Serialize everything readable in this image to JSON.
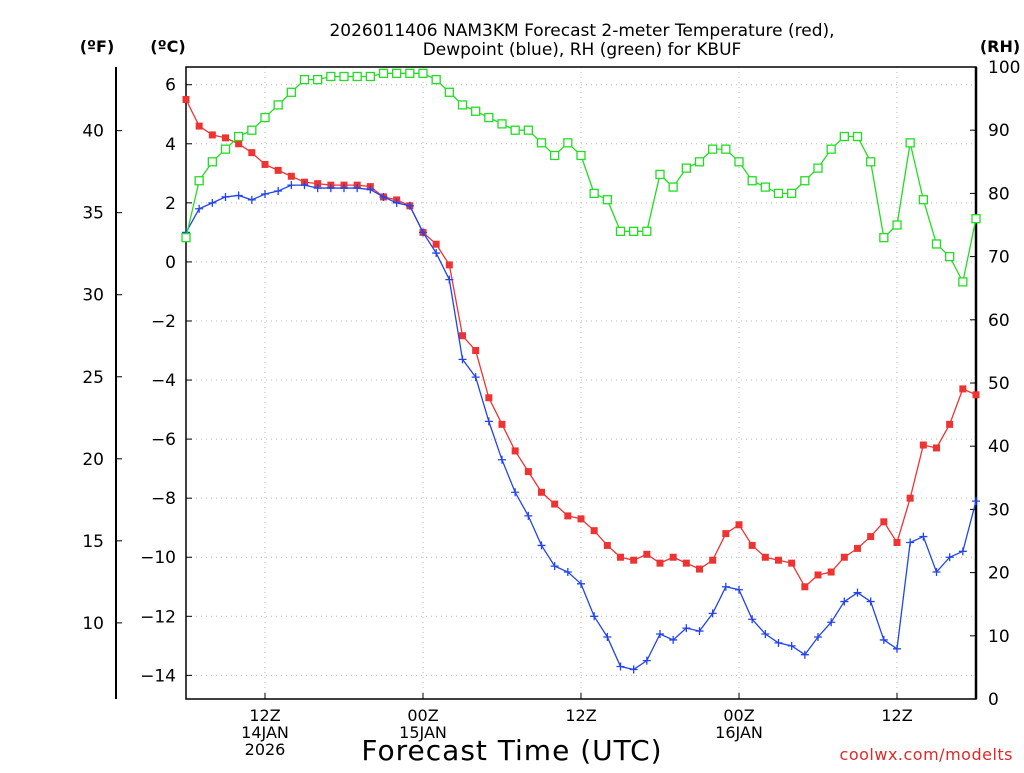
{
  "chart_data": {
    "type": "line",
    "title_lines": [
      "2026011406 NAM3KM Forecast 2-meter Temperature (red),",
      "Dewpoint (blue), RH (green) for KBUF"
    ],
    "units": {
      "fahrenheit": "(ºF)",
      "celsius": "(ºC)",
      "rh": "(RH)"
    },
    "xlabel": "Forecast Time (UTC)",
    "credit": "coolwx.com/modelts",
    "x_hours_range": [
      0,
      60
    ],
    "y_celsius_range": [
      -14.8,
      6.6
    ],
    "y_rh_range": [
      0,
      100
    ],
    "y_celsius_ticks": [
      6,
      4,
      2,
      0,
      -2,
      -4,
      -6,
      -8,
      -10,
      -12,
      -14
    ],
    "y_celsius_tick_labels": [
      "6",
      "4",
      "2",
      "0",
      "−2",
      "−4",
      "−6",
      "−8",
      "−10",
      "−12",
      "−14"
    ],
    "y_fahrenheit_ticks": [
      40,
      35,
      30,
      25,
      20,
      15,
      10
    ],
    "y_fahrenheit_tick_labels": [
      "40",
      "35",
      "30",
      "25",
      "20",
      "15",
      "10"
    ],
    "y_rh_ticks": [
      100,
      90,
      80,
      70,
      60,
      50,
      40,
      30,
      20,
      10,
      0
    ],
    "y_rh_tick_labels": [
      "100",
      "90",
      "80",
      "70",
      "60",
      "50",
      "40",
      "30",
      "20",
      "10",
      "0"
    ],
    "x_ticks": [
      {
        "hour": 6,
        "lines": [
          "12Z",
          "14JAN",
          "2026"
        ]
      },
      {
        "hour": 18,
        "lines": [
          "00Z",
          "15JAN"
        ]
      },
      {
        "hour": 30,
        "lines": [
          "12Z"
        ]
      },
      {
        "hour": 42,
        "lines": [
          "00Z",
          "16JAN"
        ]
      },
      {
        "hour": 54,
        "lines": [
          "12Z"
        ]
      }
    ],
    "grid": true,
    "x_hours": [
      0,
      1,
      2,
      3,
      4,
      5,
      6,
      7,
      8,
      9,
      10,
      11,
      12,
      13,
      14,
      15,
      16,
      17,
      18,
      19,
      20,
      21,
      22,
      23,
      24,
      25,
      26,
      27,
      28,
      29,
      30,
      31,
      32,
      33,
      34,
      35,
      36,
      37,
      38,
      39,
      40,
      41,
      42,
      43,
      44,
      45,
      46,
      47,
      48,
      49,
      50,
      51,
      52,
      53,
      54,
      55,
      56,
      57,
      58,
      59,
      60
    ],
    "series": [
      {
        "name": "2-meter Temperature",
        "unit": "C",
        "color": "#ee3333",
        "marker": "filled-square",
        "values": [
          5.5,
          4.6,
          4.3,
          4.2,
          4.0,
          3.7,
          3.3,
          3.1,
          2.9,
          2.7,
          2.65,
          2.6,
          2.6,
          2.6,
          2.55,
          2.2,
          2.1,
          1.9,
          1.0,
          0.6,
          -0.1,
          -2.5,
          -3.0,
          -4.6,
          -5.5,
          -6.4,
          -7.1,
          -7.8,
          -8.2,
          -8.6,
          -8.7,
          -9.1,
          -9.6,
          -10.0,
          -10.1,
          -9.9,
          -10.2,
          -10.0,
          -10.2,
          -10.4,
          -10.1,
          -9.2,
          -8.9,
          -9.6,
          -10.0,
          -10.1,
          -10.2,
          -11.0,
          -10.6,
          -10.5,
          -10.0,
          -9.7,
          -9.3,
          -8.8,
          -9.5,
          -8.0,
          -6.2,
          -6.3,
          -5.5,
          -4.3,
          -4.5
        ]
      },
      {
        "name": "Dewpoint",
        "unit": "C",
        "color": "#2244ee",
        "marker": "plus",
        "values": [
          1.0,
          1.8,
          2.0,
          2.2,
          2.25,
          2.1,
          2.3,
          2.4,
          2.6,
          2.6,
          2.5,
          2.5,
          2.5,
          2.5,
          2.45,
          2.2,
          2.0,
          1.9,
          1.0,
          0.3,
          -0.6,
          -3.3,
          -3.9,
          -5.4,
          -6.7,
          -7.8,
          -8.6,
          -9.6,
          -10.3,
          -10.5,
          -10.9,
          -12.0,
          -12.7,
          -13.7,
          -13.8,
          -13.5,
          -12.6,
          -12.8,
          -12.4,
          -12.5,
          -11.9,
          -11.0,
          -11.1,
          -12.1,
          -12.6,
          -12.9,
          -13.0,
          -13.3,
          -12.7,
          -12.2,
          -11.5,
          -11.2,
          -11.5,
          -12.8,
          -13.1,
          -9.5,
          -9.3,
          -10.5,
          -10.0,
          -9.8,
          -8.1
        ]
      },
      {
        "name": "RH",
        "unit": "%",
        "color": "#22dd22",
        "marker": "open-square",
        "values": [
          73,
          82,
          85,
          87,
          89,
          90,
          92,
          94,
          96,
          98,
          98,
          98.5,
          98.5,
          98.5,
          98.5,
          99,
          99,
          99,
          99,
          98,
          96,
          94,
          93,
          92,
          91,
          90,
          90,
          88,
          86,
          88,
          86,
          80,
          79,
          74,
          74,
          74,
          83,
          81,
          84,
          85,
          87,
          87,
          85,
          82,
          81,
          80,
          80,
          82,
          84,
          87,
          89,
          89,
          85,
          73,
          75,
          88,
          79,
          72,
          70,
          66,
          76
        ]
      }
    ]
  }
}
